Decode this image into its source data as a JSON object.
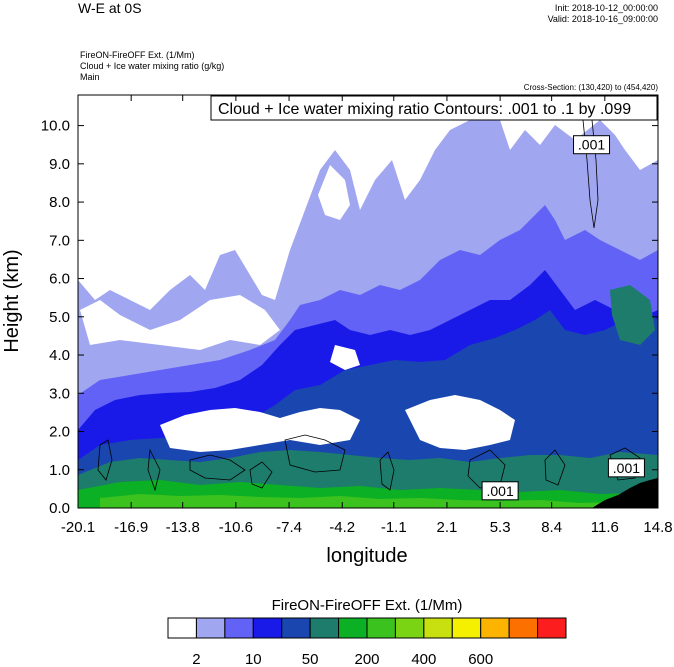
{
  "header": {
    "title": "W-E at 0S",
    "init": "Init: 2018-10-12_00:00:00",
    "valid": "Valid: 2018-10-16_09:00:00",
    "field_line1": "FireON-FireOFF Ext.   (1/Mm)",
    "field_line2": "Cloud + Ice water mixing ratio   (g/kg)",
    "field_line3": "Main",
    "cross_section": "Cross-Section: (130,420) to (454,420)"
  },
  "chart_data": {
    "type": "heatmap",
    "title": "Cloud + Ice water mixing ratio Contours: .001 to .1 by .099",
    "xlabel": "longitude",
    "ylabel": "Height (km)",
    "x_ticks": [
      "-20.1",
      "-16.9",
      "-13.8",
      "-10.6",
      "-7.4",
      "-4.2",
      "-1.1",
      "2.1",
      "5.3",
      "8.4",
      "11.6",
      "14.8"
    ],
    "y_ticks": [
      "0.0",
      "1.0",
      "2.0",
      "3.0",
      "4.0",
      "5.0",
      "6.0",
      "7.0",
      "8.0",
      "9.0",
      "10.0"
    ],
    "xlim": [
      -20.1,
      14.8
    ],
    "ylim": [
      0.0,
      10.8
    ],
    "contour_labels": [
      {
        "text": ".001",
        "x": 10.8,
        "y": 9.5
      },
      {
        "text": ".001",
        "x": 5.3,
        "y": 0.45
      },
      {
        "text": ".001",
        "x": 12.9,
        "y": 1.05
      }
    ],
    "colorbar": {
      "title": "FireON-FireOFF Ext.  (1/Mm)",
      "colors": [
        "#ffffff",
        "#a0a6f0",
        "#6262f6",
        "#1a1ae8",
        "#1a46b0",
        "#1d7c6c",
        "#0cb024",
        "#3cc21e",
        "#7ad414",
        "#c8e010",
        "#f4f000",
        "#fcb400",
        "#fc7000",
        "#fc1e1e"
      ],
      "labels": [
        "2",
        "10",
        "50",
        "200",
        "400",
        "600"
      ]
    },
    "grid": false
  }
}
